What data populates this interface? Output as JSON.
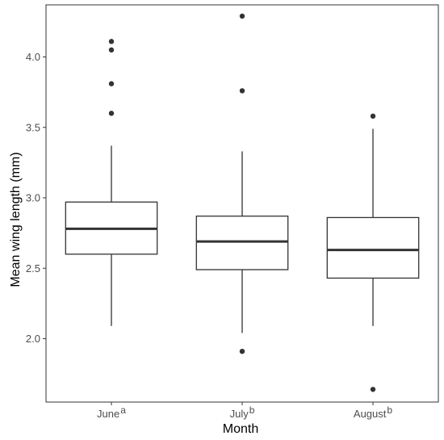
{
  "chart_data": {
    "type": "boxplot",
    "xlabel": "Month",
    "ylabel": "Mean wing length (mm)",
    "ylim": [
      1.55,
      4.37
    ],
    "yticks": [
      2.0,
      2.5,
      3.0,
      3.5,
      4.0
    ],
    "ytick_labels": [
      "2.0",
      "2.5",
      "3.0",
      "3.5",
      "4.0"
    ],
    "grid": false,
    "categories": [
      {
        "label": "June",
        "superscript": "a",
        "whisker_low": 2.09,
        "q1": 2.6,
        "median": 2.78,
        "q3": 2.97,
        "whisker_high": 3.37,
        "outliers": [
          3.6,
          3.81,
          4.05,
          4.11
        ]
      },
      {
        "label": "July",
        "superscript": "b",
        "whisker_low": 2.04,
        "q1": 2.49,
        "median": 2.69,
        "q3": 2.87,
        "whisker_high": 3.33,
        "outliers": [
          1.91,
          3.76,
          4.29
        ]
      },
      {
        "label": "August",
        "superscript": "b",
        "whisker_low": 2.09,
        "q1": 2.43,
        "median": 2.63,
        "q3": 2.86,
        "whisker_high": 3.49,
        "outliers": [
          1.64,
          3.58
        ]
      }
    ],
    "colors": {
      "box_stroke": "#333333",
      "median": "#333333",
      "outlier": "#333333",
      "panel_border": "#333333",
      "tick_label": "#4d4d4d"
    }
  }
}
